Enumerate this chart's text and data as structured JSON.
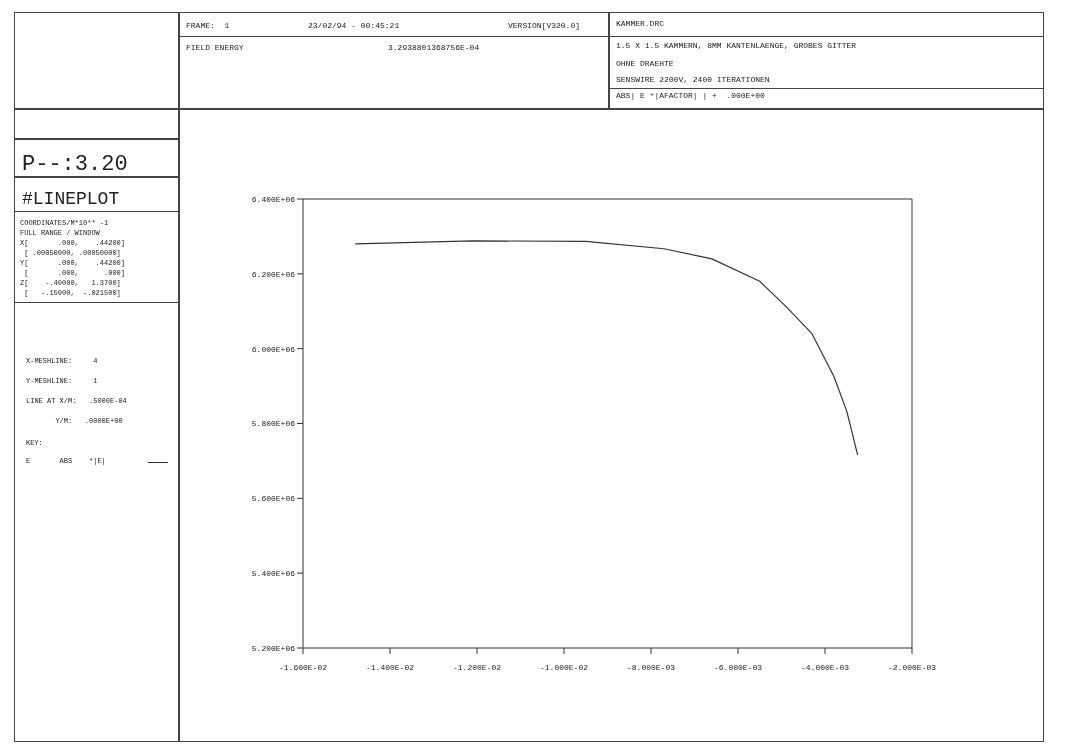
{
  "chart_data": {
    "type": "line",
    "x": [
      -0.0148,
      -0.0121,
      -0.0095,
      -0.0077,
      -0.0066,
      -0.0055,
      -0.0049,
      -0.0043,
      -0.0038,
      -0.0035,
      -0.00325
    ],
    "series": [
      {
        "color": "#333333",
        "values": [
          6280000.0,
          6288000.0,
          6287000.0,
          6267000.0,
          6240000.0,
          6180000.0,
          6113000.0,
          6040000.0,
          5927000.0,
          5833000.0,
          5716000.0
        ]
      }
    ],
    "xlim": [
      -0.016,
      -0.002
    ],
    "xticks": [
      {
        "value": -0.016,
        "label": "-1.600E-02"
      },
      {
        "value": -0.014,
        "label": "-1.400E-02"
      },
      {
        "value": -0.012,
        "label": "-1.200E-02"
      },
      {
        "value": -0.01,
        "label": "-1.000E-02"
      },
      {
        "value": -0.008,
        "label": "-8.000E-03"
      },
      {
        "value": -0.006,
        "label": "-6.000E-03"
      },
      {
        "value": -0.004,
        "label": "-4.000E-03"
      },
      {
        "value": -0.002,
        "label": "-2.000E-03"
      }
    ],
    "ylim": [
      5200000,
      6400000
    ],
    "yticks": [
      {
        "value": 5200000,
        "label": "5.200E+06"
      },
      {
        "value": 5400000,
        "label": "5.400E+06"
      },
      {
        "value": 5600000,
        "label": "5.600E+06"
      },
      {
        "value": 5800000,
        "label": "5.800E+06"
      },
      {
        "value": 6000000,
        "label": "6.000E+06"
      },
      {
        "value": 6200000,
        "label": "6.200E+06"
      },
      {
        "value": 6400000,
        "label": "6.400E+06"
      }
    ],
    "marker": "none",
    "line_style": "solid",
    "annotations": [
      "FRAME:  1",
      "23/02/94 - 00:45:21",
      "VERSION[V320.0]",
      "FIELD ENERGY",
      "3.2938801368756E-04",
      "KAMMER.DRC",
      "1.5 X 1.5 KAMMERN, 8MM KANTENLAENGE, GROBES GITTER",
      "OHNE DRAEHTE",
      "SENSWIRE 2200V, 2400 ITERATIONEN",
      "ABS| E *|AFACTOR| | +  .000E+00",
      "P--:3.20",
      "#LINEPLOT",
      "COORDINATES/M*10** -1",
      "FULL RANGE / WINDOW",
      "X[       .000,    .44200]",
      " [ .00050000, .00050000]",
      "Y[       .000,    .44200]",
      " [       .000,      .000]",
      "Z[    -.40000,   1.3700]",
      " [   -.15000,  -.021500]",
      "X-MESHLINE:     4",
      "Y-MESHLINE:     1",
      "LINE AT X/M:   .5000E-04",
      "       Y/M:   .0000E+00",
      "KEY:",
      "E       ABS    *|E|"
    ]
  }
}
